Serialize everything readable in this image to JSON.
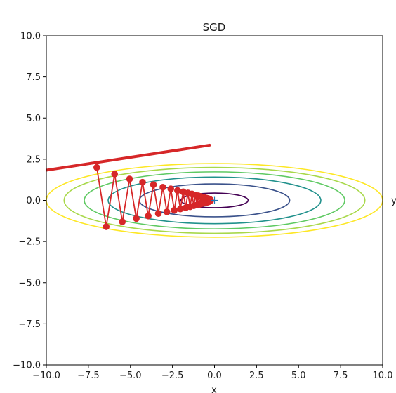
{
  "chart_data": {
    "type": "line",
    "title": "SGD",
    "xlabel": "x",
    "ylabel": "y",
    "xlim": [
      -10.0,
      10.0
    ],
    "ylim": [
      -10.0,
      10.0
    ],
    "x_tick_labels": [
      "−10.0",
      "−7.5",
      "−5.0",
      "−2.5",
      "0.0",
      "2.5",
      "5.0",
      "7.5",
      "10.0"
    ],
    "y_tick_labels": [
      "10.0",
      "7.5",
      "5.0",
      "2.5",
      "0.0",
      "−2.5",
      "−5.0",
      "−7.5",
      "−10.0"
    ],
    "grid": false,
    "contour": {
      "function": "x^2/20 + y^2",
      "center": [
        0,
        0
      ],
      "levels": [
        0.2,
        1,
        2,
        3,
        4,
        5
      ],
      "colors": [
        "#440154",
        "#3b528b",
        "#21918c",
        "#5ec962",
        "#a8d84a",
        "#fde725"
      ]
    },
    "minimum_marker": {
      "x": 0,
      "y": 0,
      "marker": "+",
      "color": "#1f77b4"
    },
    "series": [
      {
        "path": [
          [
            -7.0,
            2.0
          ],
          [
            -6.44,
            -1.6
          ],
          [
            -5.94,
            1.6
          ],
          [
            -5.48,
            -1.3
          ],
          [
            -5.05,
            1.3
          ],
          [
            -4.65,
            -1.1
          ],
          [
            -4.28,
            1.1
          ],
          [
            -3.94,
            -0.95
          ],
          [
            -3.63,
            0.95
          ],
          [
            -3.34,
            -0.8
          ],
          [
            -3.07,
            0.8
          ],
          [
            -2.83,
            -0.7
          ],
          [
            -2.6,
            0.7
          ],
          [
            -2.39,
            -0.6
          ],
          [
            -2.2,
            0.6
          ],
          [
            -2.03,
            -0.52
          ],
          [
            -1.86,
            0.52
          ],
          [
            -1.71,
            -0.45
          ],
          [
            -1.58,
            0.45
          ],
          [
            -1.45,
            -0.39
          ],
          [
            -1.34,
            0.39
          ],
          [
            -1.23,
            -0.33
          ],
          [
            -1.13,
            0.33
          ],
          [
            -1.04,
            -0.28
          ],
          [
            -0.96,
            0.28
          ],
          [
            -0.88,
            -0.24
          ],
          [
            -0.81,
            0.24
          ],
          [
            -0.75,
            -0.2
          ],
          [
            -0.69,
            0.2
          ],
          [
            -0.63,
            -0.17
          ],
          [
            -0.58,
            0.17
          ],
          [
            -0.54,
            -0.14
          ],
          [
            -0.49,
            0.14
          ],
          [
            -0.45,
            -0.12
          ],
          [
            -0.42,
            0.12
          ],
          [
            -0.38,
            -0.1
          ],
          [
            -0.35,
            0.1
          ],
          [
            -0.33,
            -0.08
          ],
          [
            -0.3,
            0.08
          ],
          [
            -0.28,
            -0.06
          ],
          [
            -0.25,
            0.04
          ],
          [
            -0.23,
            -0.02
          ]
        ],
        "color": "#d62728",
        "marker": "o"
      }
    ],
    "extra_line": {
      "from": [
        -11.5,
        1.6
      ],
      "to": [
        -0.3,
        3.35
      ],
      "color": "#d62728"
    }
  }
}
